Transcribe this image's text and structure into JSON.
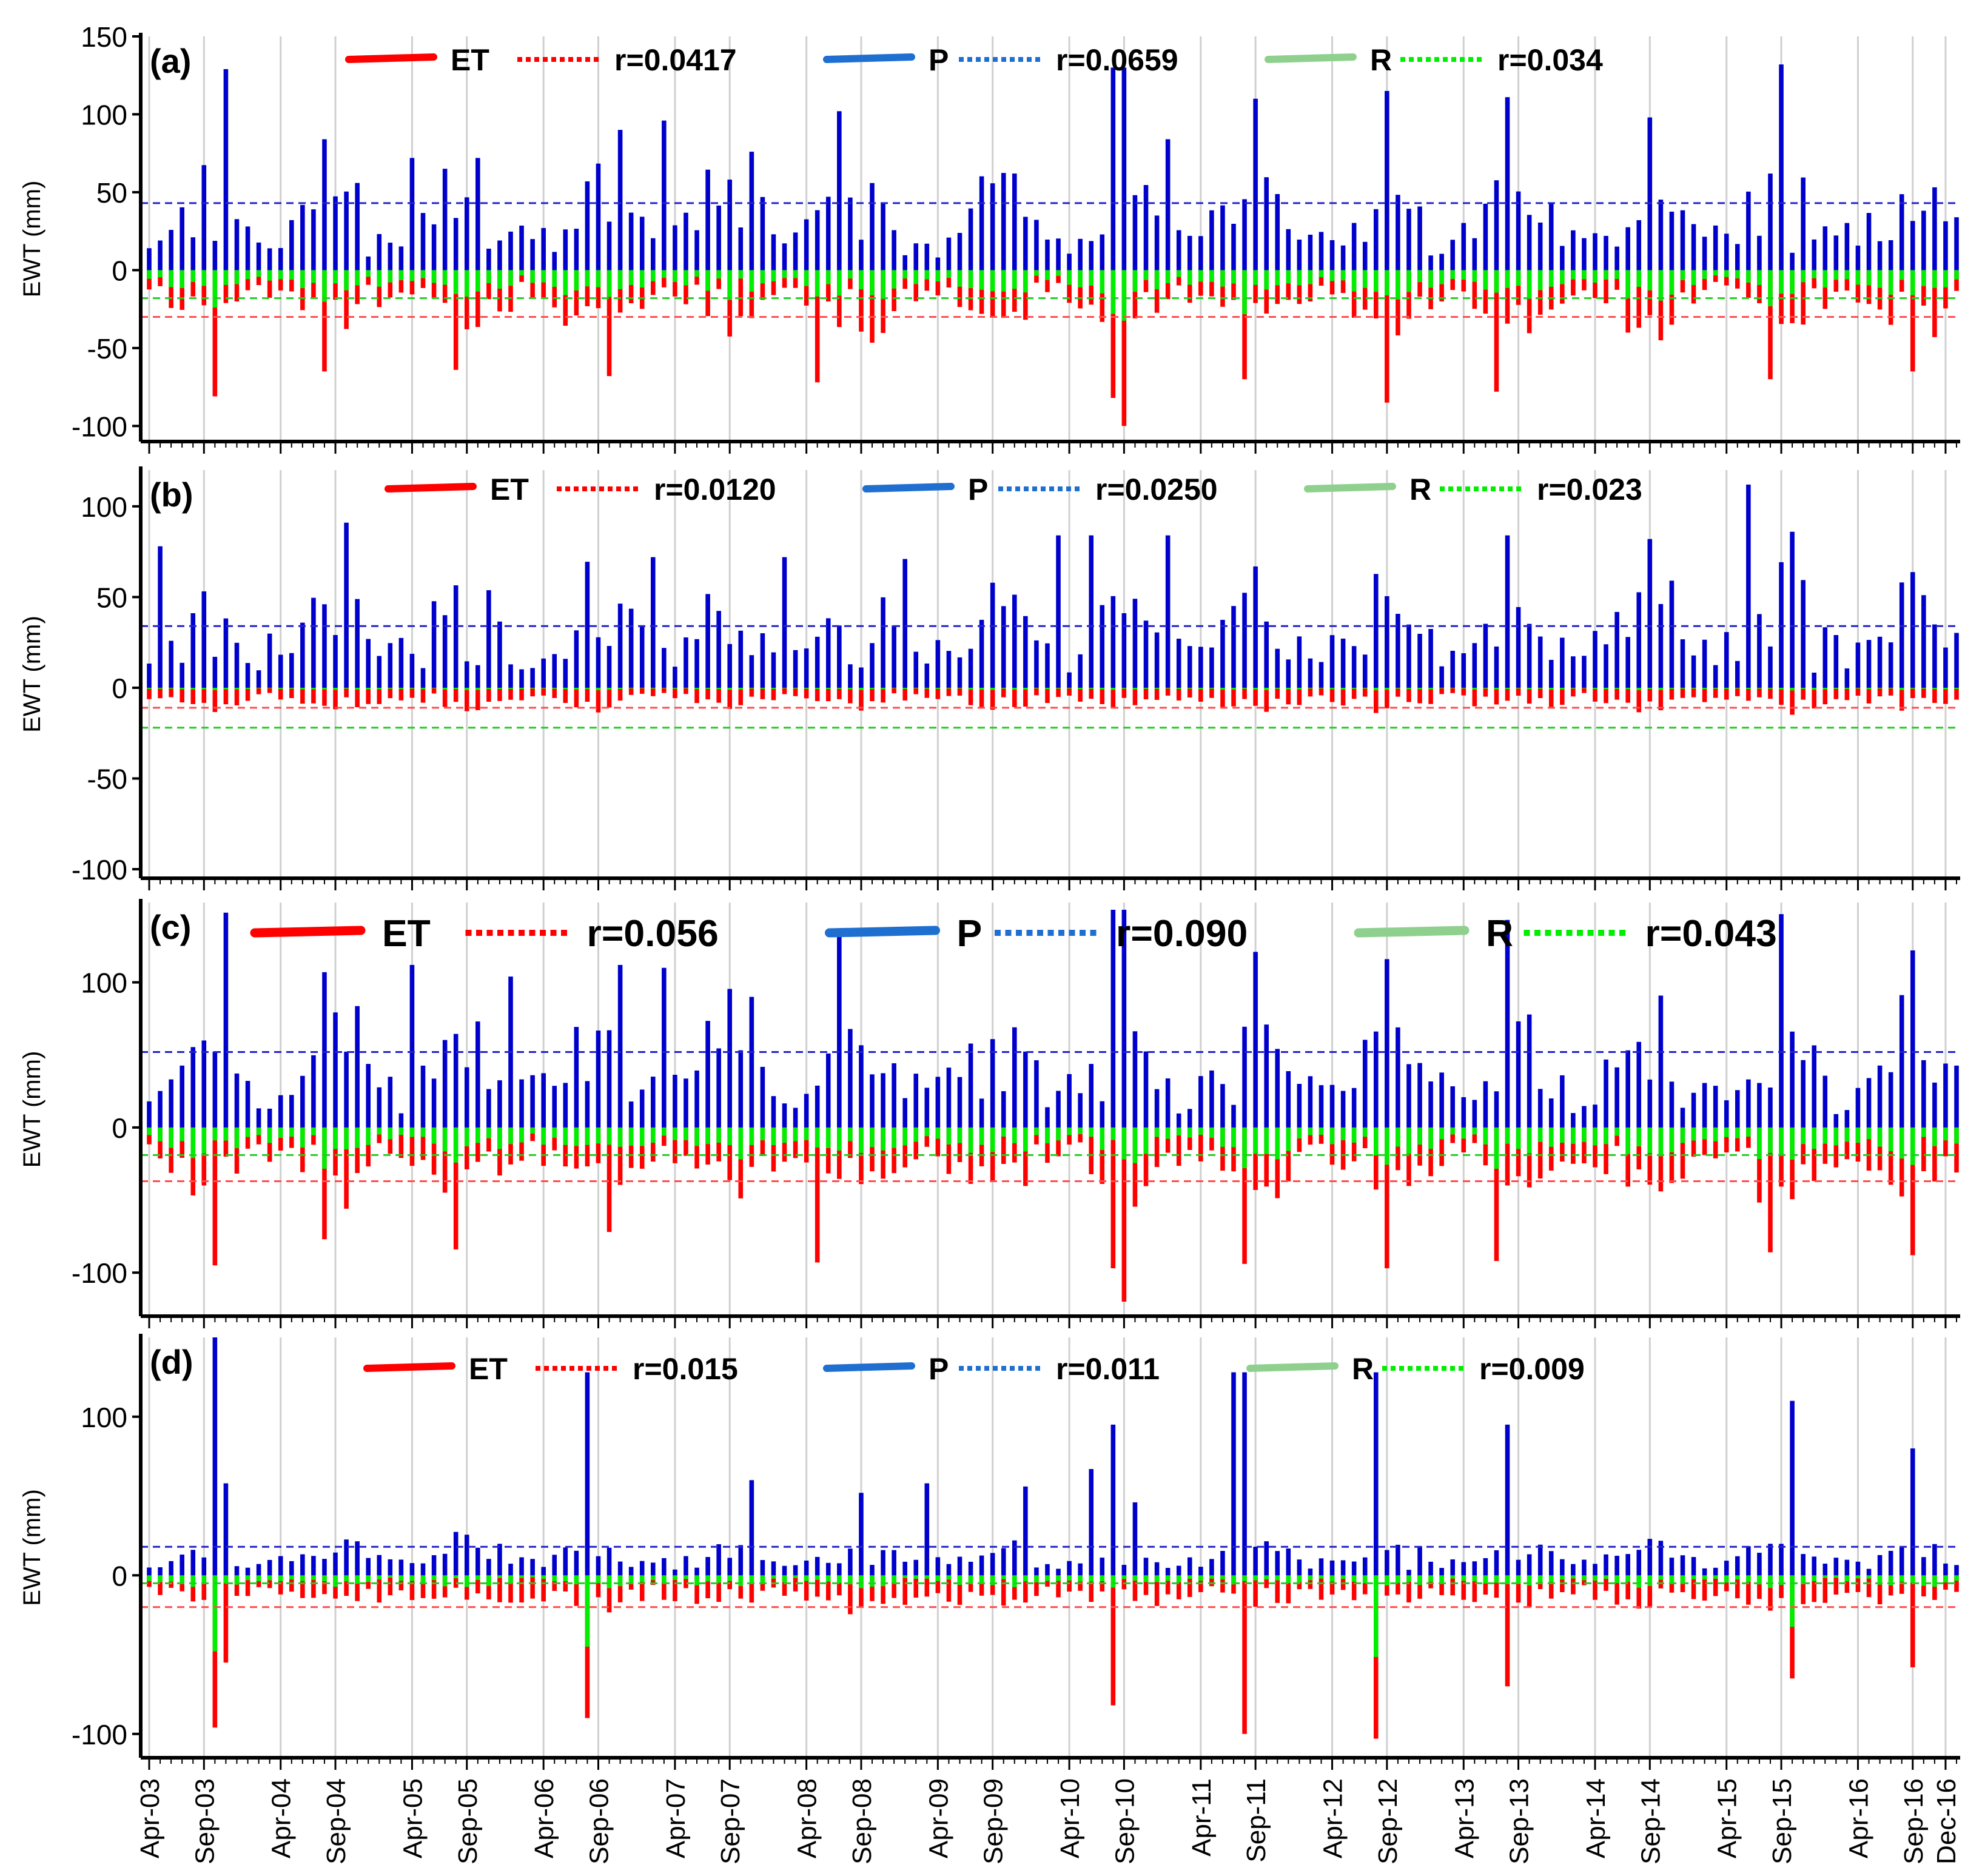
{
  "colors": {
    "et": "#ff0000",
    "p": "#0000cc",
    "r": "#00ee00",
    "p_legend_line": "#1f6fd1",
    "r_legend_line": "#8fd08f",
    "et_mean": "#ff4d4d",
    "p_mean": "#2222cc",
    "r_mean": "#22cc22",
    "grid": "#d0d0d0",
    "axis": "#000000"
  },
  "shared_x": {
    "tick_labels": [
      "Apr-03",
      "Sep-03",
      "Apr-04",
      "Sep-04",
      "Apr-05",
      "Sep-05",
      "Apr-06",
      "Sep-06",
      "Apr-07",
      "Sep-07",
      "Apr-08",
      "Sep-08",
      "Apr-09",
      "Sep-09",
      "Apr-10",
      "Sep-10",
      "Apr-11",
      "Sep-11",
      "Apr-12",
      "Sep-12",
      "Apr-13",
      "Sep-13",
      "Apr-14",
      "Sep-14",
      "Apr-15",
      "Sep-15",
      "Apr-16",
      "Sep-16",
      "Dec-16"
    ],
    "tick_month_index": [
      0,
      5,
      12,
      17,
      24,
      29,
      36,
      41,
      48,
      53,
      60,
      65,
      72,
      77,
      84,
      89,
      96,
      101,
      108,
      113,
      120,
      125,
      132,
      137,
      144,
      149,
      156,
      161,
      164
    ],
    "n_months": 166,
    "first_month": "Feb-03"
  },
  "chart_data": [
    {
      "type": "bar",
      "panel_label": "(a)",
      "ylabel": "EWT (mm)",
      "ylim": [
        -110,
        150
      ],
      "yticks": [
        -100,
        -50,
        0,
        50,
        100,
        150
      ],
      "legend": {
        "et": "ET",
        "et_r": "r=0.0417",
        "p": "P",
        "p_r": "r=0.0659",
        "r": "R",
        "r_r": "r=0.034"
      },
      "means": {
        "p": 43,
        "et": -30,
        "r": -18
      },
      "seed": 11,
      "p_base": 28,
      "p_amp": 55,
      "et_base": -18,
      "et_amp": -30,
      "r_base": -14,
      "r_amp": -20,
      "r_frac": 0.55,
      "anchors": {
        "p": [
          [
            7,
            129
          ],
          [
            16,
            84
          ],
          [
            24,
            72
          ],
          [
            30,
            72
          ],
          [
            43,
            90
          ],
          [
            47,
            96
          ],
          [
            55,
            76
          ],
          [
            63,
            102
          ],
          [
            79,
            62
          ],
          [
            88,
            130
          ],
          [
            89,
            130
          ],
          [
            93,
            84
          ],
          [
            101,
            110
          ],
          [
            113,
            115
          ],
          [
            124,
            111
          ],
          [
            137,
            98
          ],
          [
            149,
            132
          ]
        ],
        "et": [
          [
            6,
            -81
          ],
          [
            16,
            -65
          ],
          [
            28,
            -64
          ],
          [
            42,
            -68
          ],
          [
            61,
            -72
          ],
          [
            88,
            -82
          ],
          [
            89,
            -100
          ],
          [
            100,
            -70
          ],
          [
            113,
            -85
          ],
          [
            123,
            -78
          ],
          [
            148,
            -70
          ],
          [
            161,
            -65
          ]
        ]
      }
    },
    {
      "type": "bar",
      "panel_label": "(b)",
      "ylabel": "EWT (mm)",
      "ylim": [
        -105,
        120
      ],
      "yticks": [
        -100,
        -50,
        0,
        50,
        100
      ],
      "legend": {
        "et": "ET",
        "et_r": "r=0.0120",
        "p": "P",
        "p_r": "r=0.0250",
        "r": "R",
        "r_r": "r=0.023"
      },
      "means": {
        "p": 34,
        "et": -11,
        "r": -22
      },
      "seed": 23,
      "p_base": 26,
      "p_amp": 45,
      "et_base": -7,
      "et_amp": -8,
      "r_base": -22,
      "r_amp": -35,
      "r_frac": 0.9,
      "anchors": {
        "p": [
          [
            1,
            78
          ],
          [
            18,
            91
          ],
          [
            46,
            72
          ],
          [
            58,
            72
          ],
          [
            69,
            71
          ],
          [
            83,
            84
          ],
          [
            86,
            84
          ],
          [
            93,
            84
          ],
          [
            124,
            84
          ],
          [
            137,
            82
          ],
          [
            146,
            112
          ],
          [
            150,
            86
          ]
        ],
        "r": [
          [
            3,
            -62
          ],
          [
            19,
            -72
          ],
          [
            35,
            -65
          ],
          [
            47,
            -71
          ],
          [
            70,
            -70
          ],
          [
            91,
            -62
          ],
          [
            93,
            -65
          ],
          [
            128,
            -63
          ],
          [
            147,
            -96
          ],
          [
            152,
            -66
          ]
        ]
      }
    },
    {
      "type": "bar",
      "panel_label": "(c)",
      "ylabel": "EWT (mm)",
      "ylim": [
        -130,
        155
      ],
      "yticks": [
        -100,
        0,
        100
      ],
      "legend": {
        "et": "ET",
        "et_r": "r=0.056",
        "p": "P",
        "p_r": "r=0.090",
        "r": "R",
        "r_r": "r=0.043"
      },
      "means": {
        "p": 52,
        "et": -37,
        "r": -19
      },
      "seed": 37,
      "p_base": 32,
      "p_amp": 65,
      "et_base": -22,
      "et_amp": -38,
      "r_base": -15,
      "r_amp": -22,
      "r_frac": 0.55,
      "anchors": {
        "p": [
          [
            7,
            148
          ],
          [
            16,
            107
          ],
          [
            24,
            112
          ],
          [
            33,
            104
          ],
          [
            43,
            112
          ],
          [
            47,
            110
          ],
          [
            55,
            90
          ],
          [
            63,
            132
          ],
          [
            88,
            150
          ],
          [
            89,
            150
          ],
          [
            101,
            121
          ],
          [
            113,
            116
          ],
          [
            124,
            143
          ],
          [
            149,
            147
          ],
          [
            161,
            122
          ]
        ],
        "et": [
          [
            6,
            -95
          ],
          [
            16,
            -77
          ],
          [
            28,
            -84
          ],
          [
            42,
            -72
          ],
          [
            61,
            -93
          ],
          [
            88,
            -97
          ],
          [
            89,
            -120
          ],
          [
            100,
            -94
          ],
          [
            113,
            -97
          ],
          [
            123,
            -92
          ],
          [
            148,
            -86
          ],
          [
            161,
            -88
          ]
        ]
      }
    },
    {
      "type": "bar",
      "panel_label": "(d)",
      "ylabel": "EWT (mm)",
      "ylim": [
        -115,
        150
      ],
      "yticks": [
        -100,
        0,
        100
      ],
      "legend": {
        "et": "ET",
        "et_r": "r=0.015",
        "p": "P",
        "p_r": "r=0.011",
        "r": "R",
        "r_r": "r=0.009"
      },
      "means": {
        "p": 18,
        "et": -20,
        "r": -5
      },
      "seed": 53,
      "p_base": 10,
      "p_amp": 18,
      "et_base": -14,
      "et_amp": -10,
      "r_base": -4,
      "r_amp": -6,
      "r_frac": 0.5,
      "anchors": {
        "p": [
          [
            6,
            150
          ],
          [
            7,
            58
          ],
          [
            40,
            128
          ],
          [
            55,
            60
          ],
          [
            65,
            52
          ],
          [
            71,
            58
          ],
          [
            80,
            56
          ],
          [
            86,
            67
          ],
          [
            88,
            95
          ],
          [
            90,
            46
          ],
          [
            99,
            128
          ],
          [
            100,
            128
          ],
          [
            112,
            128
          ],
          [
            124,
            95
          ],
          [
            150,
            110
          ],
          [
            161,
            80
          ]
        ],
        "et": [
          [
            6,
            -96
          ],
          [
            7,
            -55
          ],
          [
            40,
            -90
          ],
          [
            88,
            -82
          ],
          [
            100,
            -100
          ],
          [
            112,
            -103
          ],
          [
            124,
            -70
          ],
          [
            150,
            -65
          ],
          [
            161,
            -58
          ]
        ],
        "r": [
          [
            6,
            -52
          ],
          [
            40,
            -88
          ],
          [
            99,
            -68
          ],
          [
            112,
            -70
          ],
          [
            150,
            -62
          ]
        ]
      }
    }
  ]
}
